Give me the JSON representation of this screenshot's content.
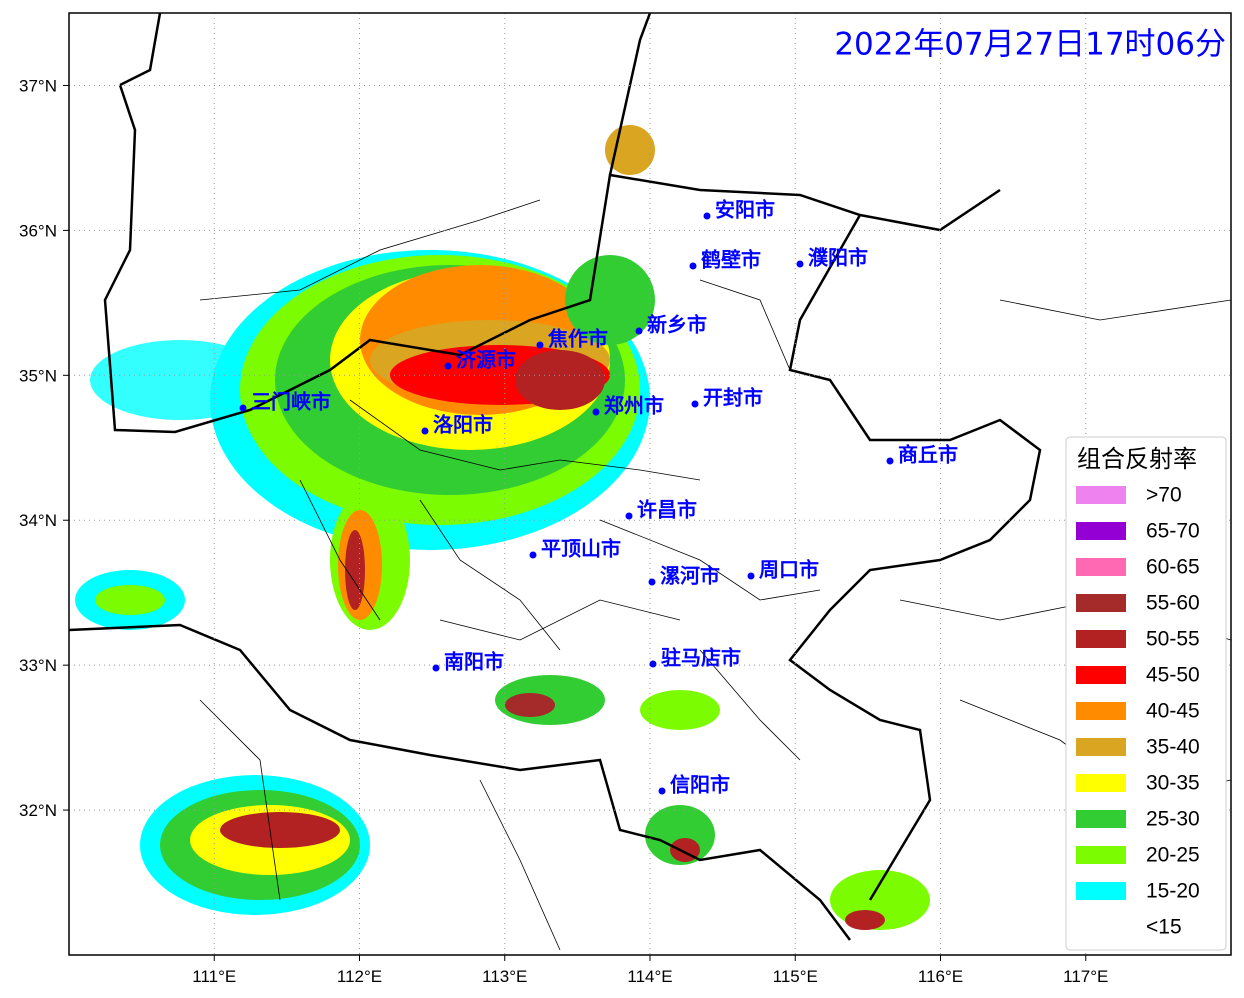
{
  "title": "2022年07月27日17时06分",
  "xticks": [
    {
      "value": 111,
      "label": "111°E"
    },
    {
      "value": 112,
      "label": "112°E"
    },
    {
      "value": 113,
      "label": "113°E"
    },
    {
      "value": 114,
      "label": "114°E"
    },
    {
      "value": 115,
      "label": "115°E"
    },
    {
      "value": 116,
      "label": "116°E"
    },
    {
      "value": 117,
      "label": "117°E"
    }
  ],
  "yticks": [
    {
      "value": 37,
      "label": "37°N"
    },
    {
      "value": 36,
      "label": "36°N"
    },
    {
      "value": 35,
      "label": "35°N"
    },
    {
      "value": 34,
      "label": "34°N"
    },
    {
      "value": 33,
      "label": "33°N"
    },
    {
      "value": 32,
      "label": "32°N"
    }
  ],
  "xlim": [
    110,
    118
  ],
  "ylim": [
    31,
    37.5
  ],
  "cities": [
    "安阳市",
    "鹤壁市",
    "濮阳市",
    "新乡市",
    "焦作市",
    "济源市",
    "郑州市",
    "开封市",
    "三门峡市",
    "洛阳市",
    "商丘市",
    "许昌市",
    "平顶山市",
    "漯河市",
    "周口市",
    "南阳市",
    "驻马店市",
    "信阳市"
  ],
  "legend": {
    "title": "组合反射率",
    "items": [
      {
        "label": ">70",
        "color": "#ee82ee"
      },
      {
        "label": "65-70",
        "color": "#9400d3"
      },
      {
        "label": "60-65",
        "color": "#ff69b4"
      },
      {
        "label": "55-60",
        "color": "#a52a2a"
      },
      {
        "label": "50-55",
        "color": "#b22222"
      },
      {
        "label": "45-50",
        "color": "#ff0000"
      },
      {
        "label": "40-45",
        "color": "#ff8c00"
      },
      {
        "label": "35-40",
        "color": "#daa520"
      },
      {
        "label": "30-35",
        "color": "#ffff00"
      },
      {
        "label": "25-30",
        "color": "#32cd32"
      },
      {
        "label": "20-25",
        "color": "#7cfc00"
      },
      {
        "label": "15-20",
        "color": "#00ffff"
      },
      {
        "label": "<15",
        "color": null
      }
    ]
  }
}
